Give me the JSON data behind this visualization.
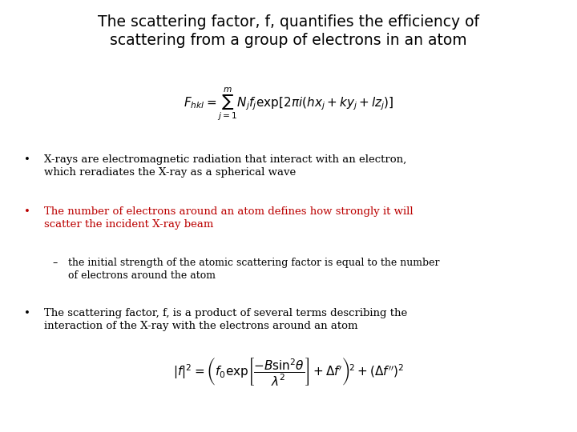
{
  "title_line1": "The scattering factor, f, quantifies the efficiency of",
  "title_line2": "scattering from a group of electrons in an atom",
  "title_fontsize": 13.5,
  "title_color": "#000000",
  "bullet1_line1": "X-rays are electromagnetic radiation that interact with an electron,",
  "bullet1_line2": "which reradiates the X-ray as a spherical wave",
  "bullet2_line1": "The number of electrons around an atom defines how strongly it will",
  "bullet2_line2": "scatter the incident X-ray beam",
  "bullet2_color": "#bb0000",
  "subbullet_line1": "the initial strength of the atomic scattering factor is equal to the number",
  "subbullet_line2": "of electrons around the atom",
  "bullet3_line1": "The scattering factor, f, is a product of several terms describing the",
  "bullet3_line2": "interaction of the X-ray with the electrons around an atom",
  "bullet_fontsize": 9.5,
  "sub_fontsize": 9.0,
  "background_color": "#ffffff",
  "text_color": "#000000",
  "formula1": "$F_{hkl} = \\sum_{j=1}^{m} N_j f_j \\exp\\!\\left[2\\pi i\\left(hx_j + ky_j + lz_j\\right)\\right]$",
  "formula2": "$|f|^2 = \\left( f_0 \\exp\\!\\left[\\dfrac{-B\\sin^2\\!\\theta}{\\lambda^2}\\right] + \\Delta f'\\right)^{\\!2} + (\\Delta f'')^2$",
  "formula1_fontsize": 11,
  "formula2_fontsize": 11
}
